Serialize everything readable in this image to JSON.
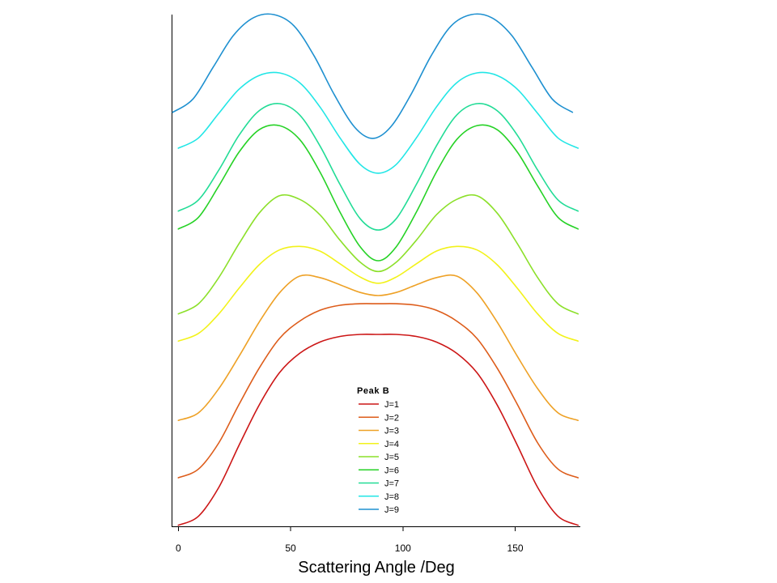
{
  "chart_data": {
    "type": "line",
    "xlabel": "Scattering Angle /Deg",
    "xlim": [
      -3,
      179
    ],
    "ylim": [
      0,
      10
    ],
    "xticks": [
      0,
      50,
      100,
      150
    ],
    "xtick_labels": [
      "0",
      "50",
      "100",
      "150"
    ],
    "yticks": [],
    "grid": false,
    "legend": {
      "title": "Peak B",
      "position": "lower-center"
    },
    "x": [
      0,
      9,
      18,
      27,
      36,
      45,
      54,
      63,
      72,
      81,
      89,
      97,
      106,
      115,
      124,
      133,
      142,
      151,
      160,
      169,
      178
    ],
    "series": [
      {
        "name": "J=1",
        "color": "#cc1616",
        "y": [
          0.02,
          0.2,
          0.76,
          1.58,
          2.37,
          3.0,
          3.38,
          3.6,
          3.71,
          3.75,
          3.75,
          3.75,
          3.71,
          3.6,
          3.38,
          3.0,
          2.37,
          1.58,
          0.76,
          0.2,
          0.02
        ]
      },
      {
        "name": "J=2",
        "color": "#dd5c1a",
        "y": [
          0.95,
          1.12,
          1.63,
          2.38,
          3.09,
          3.67,
          4.01,
          4.22,
          4.32,
          4.35,
          4.35,
          4.35,
          4.32,
          4.22,
          4.01,
          3.67,
          3.09,
          2.38,
          1.63,
          1.12,
          0.95
        ]
      },
      {
        "name": "J=3",
        "color": "#eea126",
        "y": [
          2.07,
          2.22,
          2.69,
          3.32,
          3.99,
          4.56,
          4.89,
          4.86,
          4.72,
          4.57,
          4.51,
          4.57,
          4.72,
          4.86,
          4.89,
          4.56,
          3.99,
          3.32,
          2.69,
          2.22,
          2.07
        ]
      },
      {
        "name": "J=4",
        "color": "#f2f21a",
        "y": [
          3.62,
          3.77,
          4.15,
          4.65,
          5.11,
          5.4,
          5.47,
          5.38,
          5.13,
          4.87,
          4.75,
          4.87,
          5.13,
          5.38,
          5.47,
          5.4,
          5.11,
          4.65,
          4.15,
          3.77,
          3.62
        ]
      },
      {
        "name": "J=5",
        "color": "#8ce02a",
        "y": [
          4.15,
          4.35,
          4.86,
          5.52,
          6.12,
          6.46,
          6.39,
          6.09,
          5.59,
          5.16,
          4.98,
          5.16,
          5.59,
          6.09,
          6.39,
          6.46,
          6.12,
          5.52,
          4.86,
          4.35,
          4.15
        ]
      },
      {
        "name": "J=6",
        "color": "#26d226",
        "y": [
          5.81,
          6.04,
          6.65,
          7.31,
          7.75,
          7.83,
          7.56,
          6.93,
          6.14,
          5.46,
          5.19,
          5.46,
          6.14,
          6.93,
          7.56,
          7.83,
          7.75,
          7.31,
          6.65,
          6.04,
          5.81
        ]
      },
      {
        "name": "J=7",
        "color": "#22dc96",
        "y": [
          6.16,
          6.38,
          6.96,
          7.64,
          8.12,
          8.26,
          8.04,
          7.44,
          6.68,
          6.01,
          5.79,
          6.01,
          6.68,
          7.44,
          8.04,
          8.26,
          8.12,
          7.64,
          6.96,
          6.38,
          6.16
        ]
      },
      {
        "name": "J=8",
        "color": "#22e6e6",
        "y": [
          7.39,
          7.59,
          8.07,
          8.54,
          8.81,
          8.86,
          8.67,
          8.2,
          7.59,
          7.07,
          6.9,
          7.07,
          7.59,
          8.2,
          8.67,
          8.86,
          8.81,
          8.54,
          8.07,
          7.59,
          7.39
        ]
      },
      {
        "name": "J=9",
        "color": "#1e90d0",
        "x": [
          -2.5,
          6.5,
          15.5,
          24.5,
          33.5,
          42.5,
          51.5,
          60.5,
          69.5,
          78.5,
          86.5,
          94.5,
          103.5,
          112.5,
          121.5,
          130.5,
          139.5,
          148.5,
          157.5,
          166.5,
          175.5
        ],
        "y": [
          8.09,
          8.35,
          8.97,
          9.59,
          9.94,
          10.0,
          9.78,
          9.19,
          8.43,
          7.8,
          7.58,
          7.8,
          8.43,
          9.19,
          9.78,
          10.0,
          9.94,
          9.59,
          8.97,
          8.35,
          8.09
        ]
      }
    ]
  }
}
